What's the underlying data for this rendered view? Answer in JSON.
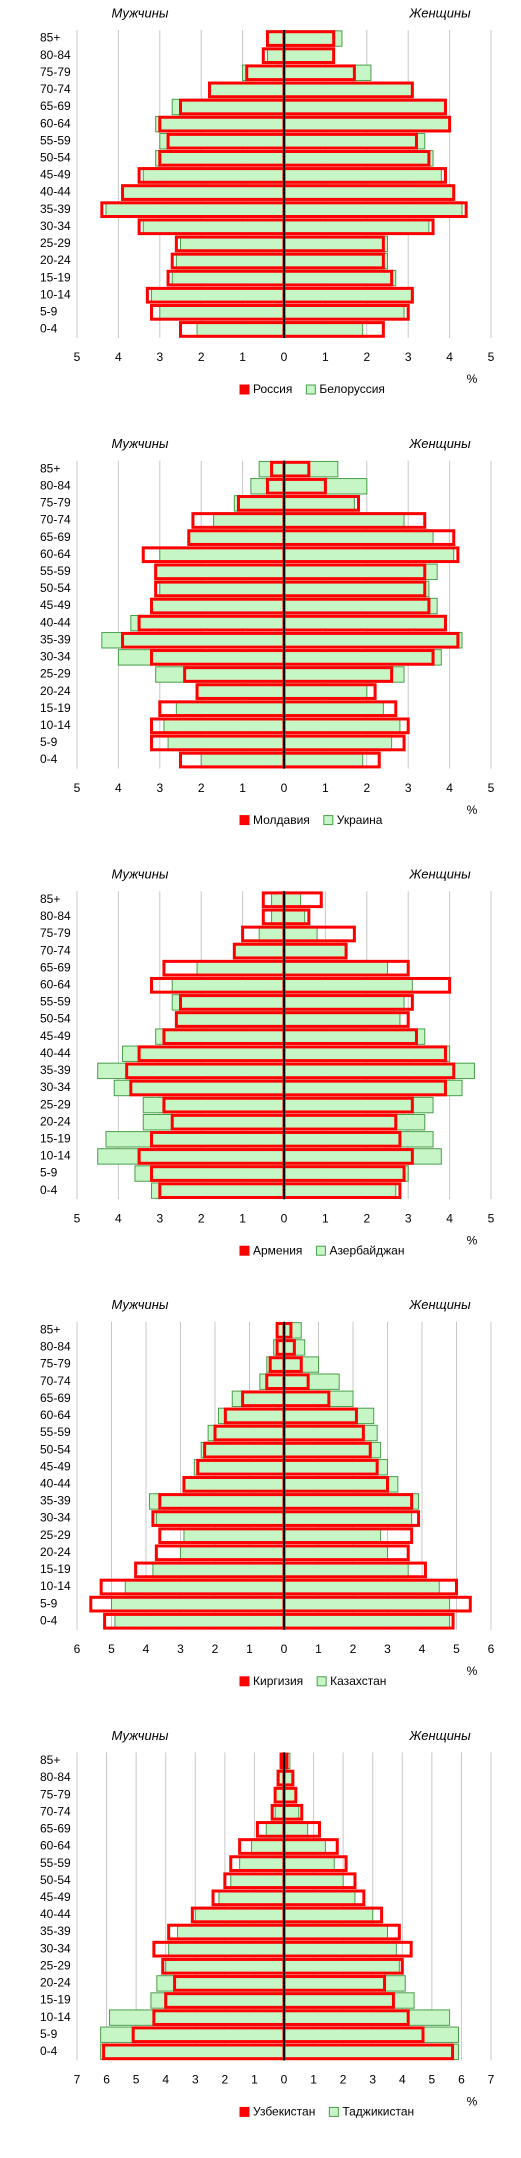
{
  "chart_data": [
    {
      "type": "pyramid",
      "left_label": "Мужчины",
      "right_label": "Женщины",
      "xlabel": "%",
      "xlim": [
        0,
        5
      ],
      "xticks": [
        0,
        1,
        2,
        3,
        4,
        5
      ],
      "grid": true,
      "categories": [
        "85+",
        "80-84",
        "75-79",
        "70-74",
        "65-69",
        "60-64",
        "55-59",
        "50-54",
        "45-49",
        "40-44",
        "35-39",
        "30-34",
        "25-29",
        "20-24",
        "15-19",
        "10-14",
        "5-9",
        "0-4"
      ],
      "series": [
        {
          "name": "Белоруссия",
          "color": "#c6f5c6",
          "style": "filled",
          "male": [
            0.4,
            0.4,
            1.0,
            1.8,
            2.7,
            3.1,
            3.0,
            3.1,
            3.4,
            3.9,
            4.3,
            3.4,
            2.5,
            2.6,
            2.7,
            3.2,
            3.0,
            2.1
          ],
          "female": [
            1.4,
            1.2,
            2.1,
            3.1,
            3.9,
            4.0,
            3.4,
            3.6,
            3.8,
            4.1,
            4.3,
            3.5,
            2.5,
            2.5,
            2.7,
            3.1,
            2.9,
            1.9
          ]
        },
        {
          "name": "Россия",
          "color": "#ff0000",
          "style": "outline",
          "male": [
            0.4,
            0.5,
            0.9,
            1.8,
            2.5,
            3.0,
            2.8,
            3.0,
            3.5,
            3.9,
            4.4,
            3.5,
            2.6,
            2.7,
            2.8,
            3.3,
            3.2,
            2.5
          ],
          "female": [
            1.2,
            1.2,
            1.7,
            3.1,
            3.9,
            4.0,
            3.2,
            3.5,
            3.9,
            4.1,
            4.4,
            3.6,
            2.4,
            2.4,
            2.6,
            3.1,
            3.0,
            2.4
          ]
        }
      ],
      "legend_order": [
        1,
        0
      ]
    },
    {
      "type": "pyramid",
      "left_label": "Мужчины",
      "right_label": "Женщины",
      "xlabel": "%",
      "xlim": [
        0,
        5
      ],
      "xticks": [
        0,
        1,
        2,
        3,
        4,
        5
      ],
      "grid": true,
      "categories": [
        "85+",
        "80-84",
        "75-79",
        "70-74",
        "65-69",
        "60-64",
        "55-59",
        "50-54",
        "45-49",
        "40-44",
        "35-39",
        "30-34",
        "25-29",
        "20-24",
        "15-19",
        "10-14",
        "5-9",
        "0-4"
      ],
      "series": [
        {
          "name": "Украина",
          "color": "#c6f5c6",
          "style": "filled",
          "male": [
            0.6,
            0.8,
            1.2,
            1.7,
            2.3,
            3.0,
            3.1,
            3.0,
            3.2,
            3.7,
            4.4,
            4.0,
            3.1,
            2.1,
            2.6,
            2.9,
            2.8,
            2.0
          ],
          "female": [
            1.3,
            2.0,
            1.7,
            2.9,
            3.6,
            4.1,
            3.7,
            3.5,
            3.7,
            3.9,
            4.3,
            3.8,
            2.9,
            2.0,
            2.4,
            2.8,
            2.6,
            1.9
          ]
        },
        {
          "name": "Молдавия",
          "color": "#ff0000",
          "style": "outline",
          "male": [
            0.3,
            0.4,
            1.1,
            2.2,
            2.3,
            3.4,
            3.1,
            3.1,
            3.2,
            3.5,
            3.9,
            3.2,
            2.4,
            2.1,
            3.0,
            3.2,
            3.2,
            2.5
          ],
          "female": [
            0.6,
            1.0,
            1.8,
            3.4,
            4.1,
            4.2,
            3.4,
            3.4,
            3.5,
            3.9,
            4.2,
            3.6,
            2.6,
            2.2,
            2.7,
            3.0,
            2.9,
            2.3
          ]
        }
      ],
      "legend_order": [
        1,
        0
      ]
    },
    {
      "type": "pyramid",
      "left_label": "Мужчины",
      "right_label": "Женщины",
      "xlabel": "%",
      "xlim": [
        0,
        5
      ],
      "xticks": [
        0,
        1,
        2,
        3,
        4,
        5
      ],
      "grid": true,
      "categories": [
        "85+",
        "80-84",
        "75-79",
        "70-74",
        "65-69",
        "60-64",
        "55-59",
        "50-54",
        "45-49",
        "40-44",
        "35-39",
        "30-34",
        "25-29",
        "20-24",
        "15-19",
        "10-14",
        "5-9",
        "0-4"
      ],
      "series": [
        {
          "name": "Азербайджан",
          "color": "#c6f5c6",
          "style": "filled",
          "male": [
            0.3,
            0.3,
            0.6,
            1.2,
            2.1,
            2.7,
            2.7,
            2.6,
            3.1,
            3.9,
            4.5,
            4.1,
            3.4,
            3.4,
            4.3,
            4.5,
            3.6,
            3.2
          ],
          "female": [
            0.4,
            0.5,
            0.8,
            1.5,
            2.5,
            3.1,
            2.9,
            2.8,
            3.4,
            4.0,
            4.6,
            4.3,
            3.6,
            3.4,
            3.6,
            3.8,
            3.0,
            2.7
          ]
        },
        {
          "name": "Армения",
          "color": "#ff0000",
          "style": "outline",
          "male": [
            0.5,
            0.5,
            1.0,
            1.2,
            2.9,
            3.2,
            2.5,
            2.6,
            2.9,
            3.5,
            3.8,
            3.7,
            2.9,
            2.7,
            3.2,
            3.5,
            3.2,
            3.0
          ],
          "female": [
            0.9,
            0.6,
            1.7,
            1.5,
            3.0,
            4.0,
            3.1,
            3.0,
            3.2,
            3.9,
            4.1,
            3.9,
            3.1,
            2.7,
            2.8,
            3.1,
            2.9,
            2.8
          ]
        }
      ],
      "legend_order": [
        1,
        0
      ]
    },
    {
      "type": "pyramid",
      "left_label": "Мужчины",
      "right_label": "Женщины",
      "xlabel": "%",
      "xlim": [
        0,
        6
      ],
      "xticks": [
        0,
        1,
        2,
        3,
        4,
        5,
        6
      ],
      "grid": true,
      "categories": [
        "85+",
        "80-84",
        "75-79",
        "70-74",
        "65-69",
        "60-64",
        "55-59",
        "50-54",
        "45-49",
        "40-44",
        "35-39",
        "30-34",
        "25-29",
        "20-24",
        "15-19",
        "10-14",
        "5-9",
        "0-4"
      ],
      "series": [
        {
          "name": "Казахстан",
          "color": "#c6f5c6",
          "style": "filled",
          "male": [
            0.2,
            0.3,
            0.5,
            0.7,
            1.5,
            1.9,
            2.2,
            2.4,
            2.6,
            2.9,
            3.9,
            3.7,
            2.9,
            3.0,
            3.8,
            4.6,
            5.0,
            4.9
          ],
          "female": [
            0.5,
            0.6,
            1.0,
            1.6,
            2.0,
            2.6,
            2.7,
            2.8,
            3.0,
            3.3,
            3.9,
            3.7,
            2.8,
            3.0,
            3.6,
            4.5,
            4.8,
            4.8
          ]
        },
        {
          "name": "Киргизия",
          "color": "#ff0000",
          "style": "outline",
          "male": [
            0.2,
            0.2,
            0.4,
            0.5,
            1.2,
            1.7,
            2.0,
            2.3,
            2.5,
            2.9,
            3.6,
            3.8,
            3.6,
            3.7,
            4.3,
            5.3,
            5.6,
            5.2
          ],
          "female": [
            0.2,
            0.3,
            0.5,
            0.7,
            1.3,
            2.1,
            2.3,
            2.5,
            2.7,
            3.0,
            3.7,
            3.9,
            3.7,
            3.6,
            4.1,
            5.0,
            5.4,
            4.9
          ]
        }
      ],
      "legend_order": [
        1,
        0
      ]
    },
    {
      "type": "pyramid",
      "left_label": "Мужчины",
      "right_label": "Женщины",
      "xlabel": "%",
      "xlim": [
        0,
        7
      ],
      "xticks": [
        0,
        1,
        2,
        3,
        4,
        5,
        6,
        7
      ],
      "grid": true,
      "categories": [
        "85+",
        "80-84",
        "75-79",
        "70-74",
        "65-69",
        "60-64",
        "55-59",
        "50-54",
        "45-49",
        "40-44",
        "35-39",
        "30-34",
        "25-29",
        "20-24",
        "15-19",
        "10-14",
        "5-9",
        "0-4"
      ],
      "series": [
        {
          "name": "Таджикистан",
          "color": "#c6f5c6",
          "style": "filled",
          "male": [
            0.1,
            0.2,
            0.3,
            0.3,
            0.6,
            1.1,
            1.5,
            1.8,
            2.2,
            3.0,
            3.6,
            3.9,
            4.0,
            4.3,
            4.5,
            5.9,
            6.2,
            6.2
          ],
          "female": [
            0.2,
            0.3,
            0.4,
            0.5,
            0.8,
            1.4,
            1.7,
            2.0,
            2.4,
            3.0,
            3.5,
            3.8,
            3.9,
            4.1,
            4.4,
            5.6,
            5.9,
            5.9
          ]
        },
        {
          "name": "Узбекистан",
          "color": "#ff0000",
          "style": "outline",
          "male": [
            0.1,
            0.2,
            0.3,
            0.4,
            0.9,
            1.5,
            1.8,
            2.0,
            2.4,
            3.1,
            3.9,
            4.4,
            4.1,
            3.7,
            4.0,
            4.4,
            5.1,
            6.1
          ],
          "female": [
            0.1,
            0.3,
            0.4,
            0.6,
            1.2,
            1.8,
            2.1,
            2.4,
            2.7,
            3.3,
            3.9,
            4.3,
            4.0,
            3.4,
            3.7,
            4.2,
            4.7,
            5.7
          ]
        }
      ],
      "legend_order": [
        1,
        0
      ]
    }
  ]
}
